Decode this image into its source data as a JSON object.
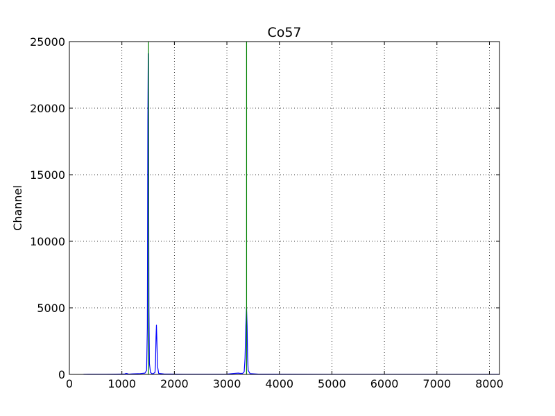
{
  "chart_data": {
    "type": "line",
    "title": "Co57",
    "xlabel": "",
    "ylabel": "Channel",
    "xlim": [
      0,
      8192
    ],
    "ylim": [
      0,
      25000
    ],
    "x_ticks": [
      0,
      1000,
      2000,
      3000,
      4000,
      5000,
      6000,
      7000,
      8000
    ],
    "y_ticks": [
      0,
      5000,
      10000,
      15000,
      20000,
      25000
    ],
    "grid": true,
    "grid_style": "dotted",
    "colors": {
      "spectrum": "#0000ff",
      "markers": "#008000"
    },
    "series": [
      {
        "x": [
          270,
          700,
          1050,
          1080,
          1100,
          1130,
          1200,
          1350,
          1440,
          1470,
          1485,
          1495,
          1502,
          1508,
          1515,
          1525,
          1545,
          1570,
          1600,
          1630,
          1640,
          1650,
          1658,
          1665,
          1680,
          1700,
          1800,
          2200,
          3000,
          3150,
          3220,
          3250,
          3300,
          3330,
          3345,
          3360,
          3370,
          3375,
          3385,
          3395,
          3405,
          3440,
          3600,
          5000,
          8192
        ],
        "y": [
          10,
          15,
          25,
          80,
          60,
          20,
          40,
          60,
          100,
          300,
          3500,
          19000,
          24100,
          19000,
          5000,
          800,
          150,
          60,
          60,
          150,
          700,
          2800,
          3700,
          2800,
          600,
          80,
          30,
          15,
          20,
          80,
          100,
          80,
          80,
          200,
          1200,
          3500,
          4700,
          5000,
          3600,
          1300,
          300,
          60,
          20,
          10,
          5
        ]
      }
    ],
    "vertical_lines": [
      1508,
      3375
    ]
  }
}
